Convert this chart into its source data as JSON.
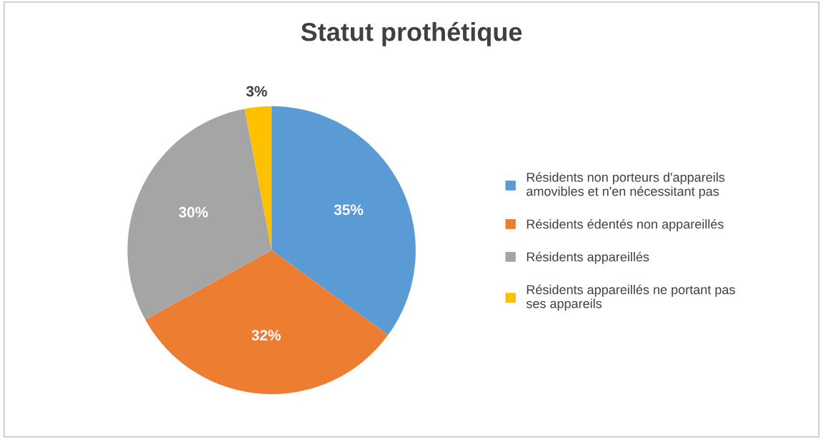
{
  "chart_data": {
    "type": "pie",
    "title": "Statut prothétique",
    "categories": [
      "Résidents non porteurs d'appareils amovibles et n'en nécessitant pas",
      "Résidents édentés non appareillés",
      "Résidents appareillés",
      "Résidents appareillés ne portant pas ses appareils"
    ],
    "values": [
      35,
      32,
      30,
      3
    ],
    "colors": [
      "#5b9bd5",
      "#ed7d31",
      "#a5a5a5",
      "#ffc000"
    ],
    "value_labels": [
      "35%",
      "32%",
      "30%",
      "3%"
    ],
    "legend": "right"
  }
}
